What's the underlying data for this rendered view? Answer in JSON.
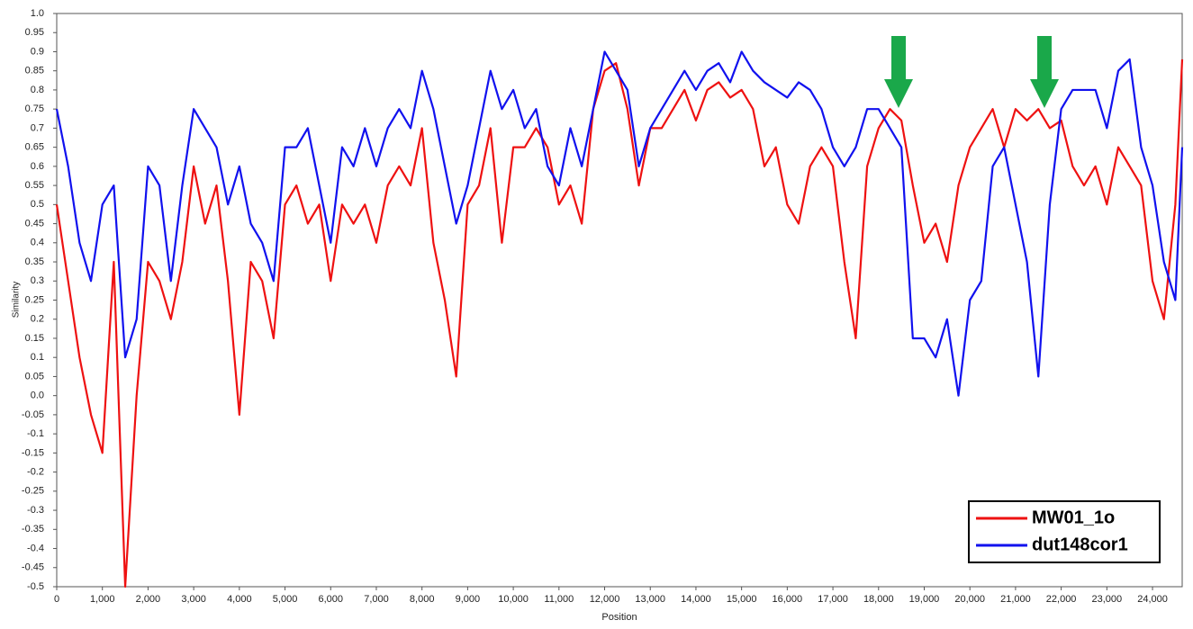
{
  "chart_data": {
    "type": "line",
    "xlabel": "Position",
    "ylabel": "Similarity",
    "legend": "lower right",
    "grid": false,
    "x": [
      0,
      250,
      500,
      750,
      1000,
      1250,
      1500,
      1750,
      2000,
      2250,
      2500,
      2750,
      3000,
      3250,
      3500,
      3750,
      4000,
      4250,
      4500,
      4750,
      5000,
      5250,
      5500,
      5750,
      6000,
      6250,
      6500,
      6750,
      7000,
      7250,
      7500,
      7750,
      8000,
      8250,
      8500,
      8750,
      9000,
      9250,
      9500,
      9750,
      10000,
      10250,
      10500,
      10750,
      11000,
      11250,
      11500,
      11750,
      12000,
      12250,
      12500,
      12750,
      13000,
      13250,
      13500,
      13750,
      14000,
      14250,
      14500,
      14750,
      15000,
      15250,
      15500,
      15750,
      16000,
      16250,
      16500,
      16750,
      17000,
      17250,
      17500,
      17750,
      18000,
      18250,
      18500,
      18750,
      19000,
      19250,
      19500,
      19750,
      20000,
      20250,
      20500,
      20750,
      21000,
      21250,
      21500,
      21750,
      22000,
      22250,
      22500,
      22750,
      23000,
      23250,
      23500,
      23750,
      24000,
      24250,
      24500,
      24650
    ],
    "series": [
      {
        "name": "MW01_1o",
        "color": "#ee1111",
        "values": [
          0.5,
          0.3,
          0.1,
          -0.05,
          -0.15,
          0.35,
          -0.5,
          0.0,
          0.35,
          0.3,
          0.2,
          0.35,
          0.6,
          0.45,
          0.55,
          0.3,
          -0.05,
          0.35,
          0.3,
          0.15,
          0.5,
          0.55,
          0.45,
          0.5,
          0.3,
          0.5,
          0.45,
          0.5,
          0.4,
          0.55,
          0.6,
          0.55,
          0.7,
          0.4,
          0.25,
          0.05,
          0.5,
          0.55,
          0.7,
          0.4,
          0.65,
          0.65,
          0.7,
          0.65,
          0.5,
          0.55,
          0.45,
          0.75,
          0.85,
          0.87,
          0.75,
          0.55,
          0.7,
          0.7,
          0.75,
          0.8,
          0.72,
          0.8,
          0.82,
          0.78,
          0.8,
          0.75,
          0.6,
          0.65,
          0.5,
          0.45,
          0.6,
          0.65,
          0.6,
          0.35,
          0.15,
          0.6,
          0.7,
          0.75,
          0.72,
          0.55,
          0.4,
          0.45,
          0.35,
          0.55,
          0.65,
          0.7,
          0.75,
          0.65,
          0.75,
          0.72,
          0.75,
          0.7,
          0.72,
          0.6,
          0.55,
          0.6,
          0.5,
          0.65,
          0.6,
          0.55,
          0.3,
          0.2,
          0.5,
          0.88
        ]
      },
      {
        "name": "dut148cor1",
        "color": "#1111ee",
        "values": [
          0.75,
          0.6,
          0.4,
          0.3,
          0.5,
          0.55,
          0.1,
          0.2,
          0.6,
          0.55,
          0.3,
          0.55,
          0.75,
          0.7,
          0.65,
          0.5,
          0.6,
          0.45,
          0.4,
          0.3,
          0.65,
          0.65,
          0.7,
          0.55,
          0.4,
          0.65,
          0.6,
          0.7,
          0.6,
          0.7,
          0.75,
          0.7,
          0.85,
          0.75,
          0.6,
          0.45,
          0.55,
          0.7,
          0.85,
          0.75,
          0.8,
          0.7,
          0.75,
          0.6,
          0.55,
          0.7,
          0.6,
          0.75,
          0.9,
          0.85,
          0.8,
          0.6,
          0.7,
          0.75,
          0.8,
          0.85,
          0.8,
          0.85,
          0.87,
          0.82,
          0.9,
          0.85,
          0.82,
          0.8,
          0.78,
          0.82,
          0.8,
          0.75,
          0.65,
          0.6,
          0.65,
          0.75,
          0.75,
          0.7,
          0.65,
          0.15,
          0.15,
          0.1,
          0.2,
          0.0,
          0.25,
          0.3,
          0.6,
          0.65,
          0.5,
          0.35,
          0.05,
          0.5,
          0.75,
          0.8,
          0.8,
          0.8,
          0.7,
          0.85,
          0.88,
          0.65,
          0.55,
          0.35,
          0.25,
          0.65
        ]
      }
    ],
    "xlim": [
      0,
      24650
    ],
    "ylim": [
      -0.5,
      1.0
    ],
    "xticks": [
      0,
      {
        "value": 1000,
        "label": "1,000"
      },
      {
        "value": 2000,
        "label": "2,000"
      },
      {
        "value": 3000,
        "label": "3,000"
      },
      {
        "value": 4000,
        "label": "4,000"
      },
      {
        "value": 5000,
        "label": "5,000"
      },
      {
        "value": 6000,
        "label": "6,000"
      },
      {
        "value": 7000,
        "label": "7,000"
      },
      {
        "value": 8000,
        "label": "8,000"
      },
      {
        "value": 9000,
        "label": "9,000"
      },
      {
        "value": 10000,
        "label": "10,000"
      },
      {
        "value": 11000,
        "label": "11,000"
      },
      {
        "value": 12000,
        "label": "12,000"
      },
      {
        "value": 13000,
        "label": "13,000"
      },
      {
        "value": 14000,
        "label": "14,000"
      },
      {
        "value": 15000,
        "label": "15,000"
      },
      {
        "value": 16000,
        "label": "16,000"
      },
      {
        "value": 17000,
        "label": "17,000"
      },
      {
        "value": 18000,
        "label": "18,000"
      },
      {
        "value": 19000,
        "label": "19,000"
      },
      {
        "value": 20000,
        "label": "20,000"
      },
      {
        "value": 21000,
        "label": "21,000"
      },
      {
        "value": 22000,
        "label": "22,000"
      },
      {
        "value": 23000,
        "label": "23,000"
      },
      {
        "value": 24000,
        "label": "24,000"
      }
    ],
    "yticks": [
      {
        "value": 1.0,
        "label": "1.0"
      },
      0.95,
      0.9,
      0.85,
      0.8,
      0.75,
      0.7,
      0.65,
      0.6,
      0.55,
      0.5,
      0.45,
      0.4,
      0.35,
      0.3,
      0.25,
      0.2,
      0.15,
      0.1,
      0.05,
      {
        "value": 0,
        "label": "0.0"
      },
      -0.05,
      -0.1,
      -0.15,
      -0.2,
      -0.25,
      -0.3,
      -0.35,
      -0.4,
      -0.45,
      -0.5
    ]
  }
}
